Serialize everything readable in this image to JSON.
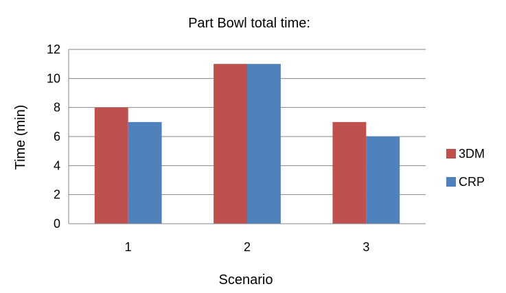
{
  "chart_data": {
    "type": "bar",
    "title": "Part Bowl total time:",
    "xlabel": "Scenario",
    "ylabel": "Time (min)",
    "categories": [
      "1",
      "2",
      "3"
    ],
    "series": [
      {
        "name": "3DM",
        "values": [
          8,
          11,
          7
        ],
        "color": "#c0504d"
      },
      {
        "name": "CRP",
        "values": [
          7,
          11,
          6
        ],
        "color": "#4f81bd"
      }
    ],
    "ylim": [
      0,
      12
    ],
    "yticks": [
      "0",
      "2",
      "4",
      "6",
      "8",
      "10",
      "12"
    ],
    "grid": true,
    "legend": "right"
  }
}
